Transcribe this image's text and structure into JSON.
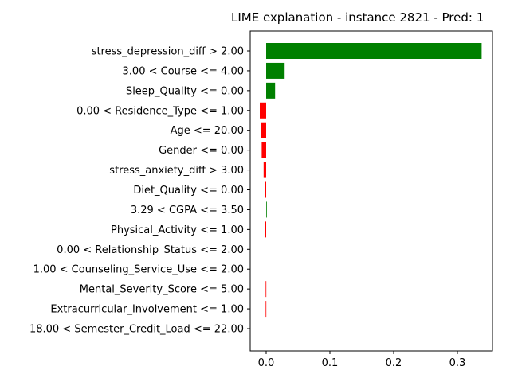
{
  "chart_data": {
    "type": "bar",
    "orientation": "horizontal",
    "title": "LIME explanation - instance 2821 - Pred: 1",
    "xlabel": "",
    "ylabel": "",
    "xlim": [
      -0.025,
      0.355
    ],
    "x_ticks": [
      0.0,
      0.1,
      0.2,
      0.3
    ],
    "x_tick_labels": [
      "0.0",
      "0.1",
      "0.2",
      "0.3"
    ],
    "grid": false,
    "colors": {
      "positive": "#008000",
      "negative": "#ff0000"
    },
    "categories": [
      "stress_depression_diff > 2.00",
      "3.00 < Course <= 4.00",
      "Sleep_Quality <= 0.00",
      "0.00 < Residence_Type <= 1.00",
      "Age <= 20.00",
      "Gender <= 0.00",
      "stress_anxiety_diff > 3.00",
      "Diet_Quality <= 0.00",
      "3.29 < CGPA <= 3.50",
      "Physical_Activity <= 1.00",
      "0.00 < Relationship_Status <= 2.00",
      "1.00 < Counseling_Service_Use <= 2.00",
      "Mental_Severity_Score <= 5.00",
      "Extracurricular_Involvement <= 1.00",
      "18.00 < Semester_Credit_Load <= 22.00"
    ],
    "values": [
      0.338,
      0.029,
      0.014,
      -0.01,
      -0.008,
      -0.007,
      -0.004,
      -0.002,
      0.001,
      -0.002,
      0.0,
      0.0,
      -0.0008,
      -0.0008,
      0.0
    ]
  }
}
